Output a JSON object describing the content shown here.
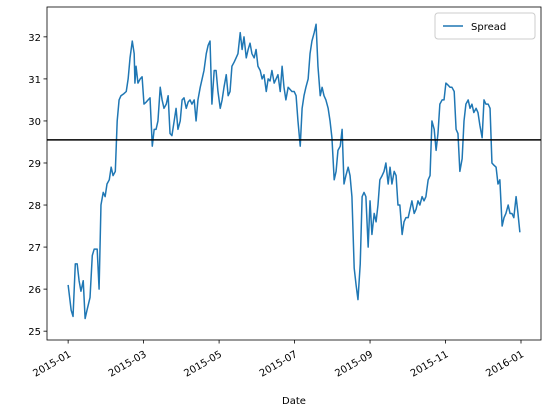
{
  "chart_data": {
    "type": "line",
    "x_label": "Date",
    "legend": "upper right",
    "xlim": [
      -0.56,
      12.53
    ],
    "ylim": [
      24.79,
      32.71
    ],
    "xticks": [
      {
        "value": 0,
        "label": "2015-01"
      },
      {
        "value": 2,
        "label": "2015-03"
      },
      {
        "value": 4,
        "label": "2015-05"
      },
      {
        "value": 6,
        "label": "2015-07"
      },
      {
        "value": 8,
        "label": "2015-09"
      },
      {
        "value": 10,
        "label": "2015-11"
      },
      {
        "value": 12,
        "label": "2016-01"
      }
    ],
    "yticks": [
      25,
      26,
      27,
      28,
      29,
      30,
      31,
      32
    ],
    "hline": {
      "value": 29.55,
      "color": "#000000"
    },
    "x": [
      0,
      0.08,
      0.13,
      0.19,
      0.24,
      0.29,
      0.34,
      0.4,
      0.45,
      0.5,
      0.58,
      0.64,
      0.69,
      0.77,
      0.82,
      0.87,
      0.93,
      0.98,
      1.03,
      1.09,
      1.14,
      1.19,
      1.25,
      1.3,
      1.35,
      1.4,
      1.48,
      1.54,
      1.59,
      1.64,
      1.7,
      1.75,
      1.77,
      1.8,
      1.85,
      1.91,
      1.96,
      2.01,
      2.07,
      2.12,
      2.17,
      2.23,
      2.28,
      2.33,
      2.38,
      2.44,
      2.49,
      2.54,
      2.6,
      2.65,
      2.7,
      2.75,
      2.81,
      2.86,
      2.91,
      2.97,
      3.02,
      3.07,
      3.13,
      3.18,
      3.23,
      3.28,
      3.34,
      3.39,
      3.44,
      3.5,
      3.55,
      3.6,
      3.66,
      3.71,
      3.76,
      3.81,
      3.87,
      3.92,
      3.97,
      4.03,
      4.08,
      4.13,
      4.19,
      4.24,
      4.29,
      4.34,
      4.4,
      4.45,
      4.5,
      4.56,
      4.61,
      4.66,
      4.72,
      4.77,
      4.82,
      4.87,
      4.93,
      4.98,
      5.03,
      5.09,
      5.14,
      5.19,
      5.25,
      5.3,
      5.35,
      5.4,
      5.46,
      5.51,
      5.56,
      5.62,
      5.67,
      5.72,
      5.77,
      5.83,
      5.88,
      5.93,
      5.99,
      6.04,
      6.09,
      6.15,
      6.2,
      6.25,
      6.3,
      6.36,
      6.41,
      6.46,
      6.52,
      6.57,
      6.62,
      6.68,
      6.73,
      6.78,
      6.83,
      6.89,
      6.94,
      6.99,
      7.05,
      7.1,
      7.15,
      7.21,
      7.26,
      7.31,
      7.36,
      7.42,
      7.47,
      7.52,
      7.58,
      7.63,
      7.68,
      7.74,
      7.79,
      7.84,
      7.89,
      7.95,
      8.0,
      8.05,
      8.11,
      8.16,
      8.21,
      8.26,
      8.32,
      8.37,
      8.42,
      8.48,
      8.53,
      8.58,
      8.64,
      8.69,
      8.74,
      8.79,
      8.85,
      8.9,
      8.95,
      9.01,
      9.06,
      9.11,
      9.17,
      9.22,
      9.27,
      9.32,
      9.38,
      9.43,
      9.48,
      9.54,
      9.59,
      9.64,
      9.7,
      9.75,
      9.8,
      9.85,
      9.91,
      9.96,
      10.01,
      10.07,
      10.12,
      10.17,
      10.23,
      10.28,
      10.33,
      10.38,
      10.44,
      10.49,
      10.54,
      10.6,
      10.65,
      10.7,
      10.75,
      10.81,
      10.86,
      10.91,
      10.97,
      11.02,
      11.07,
      11.13,
      11.18,
      11.23,
      11.28,
      11.34,
      11.39,
      11.44,
      11.5,
      11.55,
      11.6,
      11.66,
      11.71,
      11.76,
      11.81,
      11.87,
      11.92,
      11.97
    ],
    "series": [
      {
        "name": "Spread",
        "color": "#1f77b4",
        "values": [
          26.1,
          25.5,
          25.35,
          26.6,
          26.6,
          26.2,
          25.95,
          26.2,
          25.3,
          25.5,
          25.8,
          26.8,
          26.95,
          26.95,
          26.0,
          28.0,
          28.3,
          28.2,
          28.5,
          28.6,
          28.9,
          28.7,
          28.8,
          30.0,
          30.5,
          30.6,
          30.65,
          30.7,
          31.0,
          31.5,
          31.9,
          31.6,
          30.9,
          31.3,
          30.9,
          31.0,
          31.05,
          30.4,
          30.45,
          30.5,
          30.55,
          29.4,
          29.8,
          29.8,
          30.0,
          30.8,
          30.5,
          30.3,
          30.4,
          30.6,
          29.7,
          29.65,
          30.0,
          30.3,
          29.8,
          30.0,
          30.5,
          30.55,
          30.3,
          30.45,
          30.5,
          30.4,
          30.5,
          30.0,
          30.5,
          30.8,
          31.0,
          31.2,
          31.6,
          31.8,
          31.9,
          30.4,
          31.2,
          31.2,
          30.7,
          30.3,
          30.5,
          30.8,
          31.1,
          30.6,
          30.7,
          31.3,
          31.4,
          31.5,
          31.6,
          32.1,
          31.7,
          32.0,
          31.5,
          31.7,
          31.85,
          31.6,
          31.5,
          31.7,
          31.3,
          31.2,
          31.0,
          31.1,
          30.7,
          31.0,
          30.95,
          31.2,
          30.9,
          31.0,
          31.1,
          30.7,
          31.3,
          30.8,
          30.5,
          30.8,
          30.75,
          30.7,
          30.7,
          30.6,
          30.0,
          29.4,
          30.3,
          30.6,
          30.8,
          31.0,
          31.6,
          31.9,
          32.1,
          32.3,
          31.3,
          30.6,
          30.8,
          30.6,
          30.5,
          30.3,
          30.0,
          29.6,
          28.6,
          28.8,
          29.3,
          29.4,
          29.8,
          28.5,
          28.7,
          28.9,
          28.7,
          28.2,
          26.5,
          26.1,
          25.75,
          26.6,
          28.2,
          28.3,
          28.2,
          27.0,
          28.1,
          27.3,
          27.8,
          27.6,
          28.0,
          28.6,
          28.7,
          28.8,
          29.0,
          28.5,
          28.9,
          28.5,
          28.8,
          28.7,
          28.0,
          28.0,
          27.3,
          27.6,
          27.7,
          27.7,
          27.9,
          28.1,
          27.8,
          27.9,
          28.1,
          28.0,
          28.2,
          28.1,
          28.2,
          28.6,
          28.7,
          30.0,
          29.8,
          29.3,
          29.7,
          30.4,
          30.5,
          30.5,
          30.9,
          30.85,
          30.8,
          30.8,
          30.7,
          29.8,
          29.7,
          28.8,
          29.1,
          30.0,
          30.4,
          30.5,
          30.3,
          30.4,
          30.2,
          30.3,
          30.2,
          29.9,
          29.6,
          30.5,
          30.4,
          30.4,
          30.3,
          29.0,
          28.95,
          28.9,
          28.5,
          28.6,
          27.5,
          27.7,
          27.8,
          28.0,
          27.8,
          27.8,
          27.7,
          28.2,
          27.8,
          27.35
        ]
      }
    ]
  }
}
